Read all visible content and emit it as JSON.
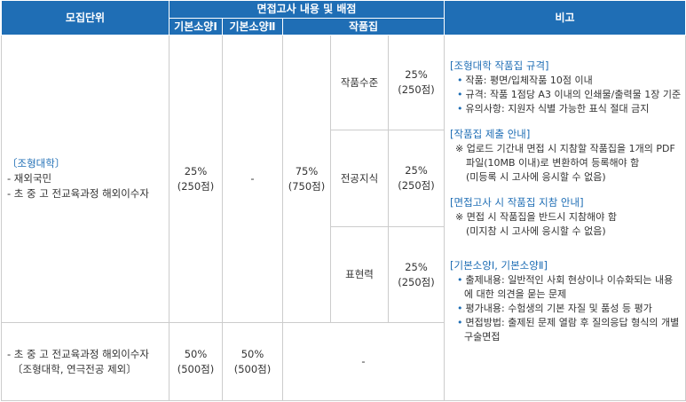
{
  "table": {
    "header": {
      "unit": "모집단위",
      "interview": "면접고사 내용 및 배점",
      "basic1": "기본소양Ⅰ",
      "basic2": "기본소양Ⅱ",
      "portfolio": "작품집",
      "notes": "비고"
    },
    "rows": [
      {
        "unit": [
          "〔조형대학〕",
          "- 재외국민",
          "- 초 중 고 전교육과정 해외이수자"
        ],
        "basic1": [
          "25%",
          "(250점)"
        ],
        "basic2": "-",
        "portfolio_total": [
          "75%",
          "(750점)"
        ],
        "portfolio_items": [
          {
            "name": "작품수준",
            "score": [
              "25%",
              "(250점)"
            ]
          },
          {
            "name": "전공지식",
            "score": [
              "25%",
              "(250점)"
            ]
          },
          {
            "name": "표현력",
            "score": [
              "25%",
              "(250점)"
            ]
          }
        ]
      },
      {
        "unit": [
          "- 초 중 고 전교육과정 해외이수자",
          "〔조형대학, 연극전공 제외〕"
        ],
        "basic1": [
          "50%",
          "(500점)"
        ],
        "basic2": [
          "50%",
          "(500점)"
        ],
        "portfolio": "-"
      }
    ],
    "notes": [
      {
        "heading": "[조형대학 작품집 규격]",
        "items": [
          "작품: 평면/입체작품 10점 이내",
          "규격: 작품 1점당 A3 이내의 인쇄물/출력물 1장 기준",
          "유의사항: 지원자 식별 가능한 표식 절대 금지"
        ]
      },
      {
        "heading": "[작품집 제출 안내]",
        "items": [
          "※ 업로드 기간내 면접 시 지참할 작품집을 1개의 PDF 파일(10MB 이내)로 변환하여 등록해야 함",
          "(미등록 시 고사에 응시할 수 없음)"
        ]
      },
      {
        "heading": "[면접고사 시 작품집 지참 안내]",
        "items": [
          "※ 면접 시 작품집을 반드시 지참해야 함",
          "(미지참 시 고사에 응시할 수 없음)"
        ]
      },
      {
        "heading": "[기본소양Ⅰ, 기본소양Ⅱ]",
        "items": [
          "출제내용: 일반적인 사회 현상이나 이슈화되는 내용에 대한 의견을 묻는 문제",
          "평가내용: 수험생의 기본 자질 및 품성 등 평가",
          "면접방법: 출제된 문제 열람 후 질의응답 형식의 개별 구술면접"
        ]
      }
    ]
  }
}
